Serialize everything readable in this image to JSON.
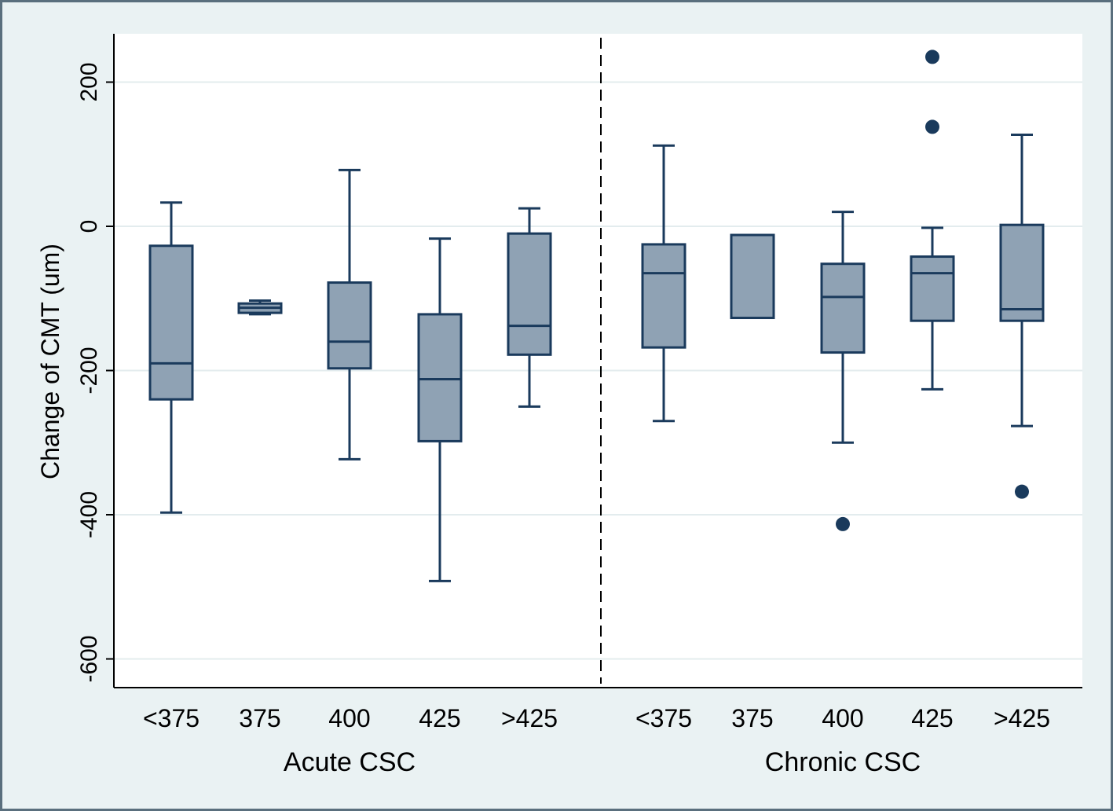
{
  "chart_data": {
    "type": "box",
    "title": "",
    "xlabel": "",
    "ylabel": "Change of CMT (um)",
    "ylim": [
      -630,
      265
    ],
    "yticks": [
      200,
      0,
      -200,
      -400,
      -600
    ],
    "grid": true,
    "groups": [
      {
        "label": "Acute CSC",
        "boxes": [
          {
            "category": "<375",
            "whisker_low": -397,
            "q1": -240,
            "median": -190,
            "q3": -27,
            "whisker_high": 33,
            "outliers": []
          },
          {
            "category": "375",
            "whisker_low": -122,
            "q1": -120,
            "median": -113,
            "q3": -107,
            "whisker_high": -103,
            "outliers": []
          },
          {
            "category": "400",
            "whisker_low": -323,
            "q1": -197,
            "median": -160,
            "q3": -78,
            "whisker_high": 78,
            "outliers": []
          },
          {
            "category": "425",
            "whisker_low": -492,
            "q1": -298,
            "median": -212,
            "q3": -122,
            "whisker_high": -17,
            "outliers": []
          },
          {
            "category": ">425",
            "whisker_low": -250,
            "q1": -178,
            "median": -138,
            "q3": -10,
            "whisker_high": 25,
            "outliers": []
          }
        ]
      },
      {
        "label": "Chronic CSC",
        "boxes": [
          {
            "category": "<375",
            "whisker_low": -270,
            "q1": -168,
            "median": -65,
            "q3": -25,
            "whisker_high": 112,
            "outliers": []
          },
          {
            "category": "375",
            "whisker_low": -127,
            "q1": -127,
            "median": -12,
            "q3": -12,
            "whisker_high": -12,
            "outliers": []
          },
          {
            "category": "400",
            "whisker_low": -300,
            "q1": -175,
            "median": -98,
            "q3": -52,
            "whisker_high": 20,
            "outliers": [
              -413
            ]
          },
          {
            "category": "425",
            "whisker_low": -226,
            "q1": -131,
            "median": -65,
            "q3": -42,
            "whisker_high": -2,
            "outliers": [
              235,
              138
            ]
          },
          {
            "category": ">425",
            "whisker_low": -277,
            "q1": -131,
            "median": -115,
            "q3": 2,
            "whisker_high": 127,
            "outliers": [
              -368
            ]
          }
        ]
      }
    ]
  },
  "colors": {
    "background": "#eaf2f3",
    "plot_area": "#ffffff",
    "box_fill": "#8fa2b4",
    "stroke": "#1a3a5c",
    "grid": "#e3ecee",
    "outlier": "#1a3a5c"
  }
}
